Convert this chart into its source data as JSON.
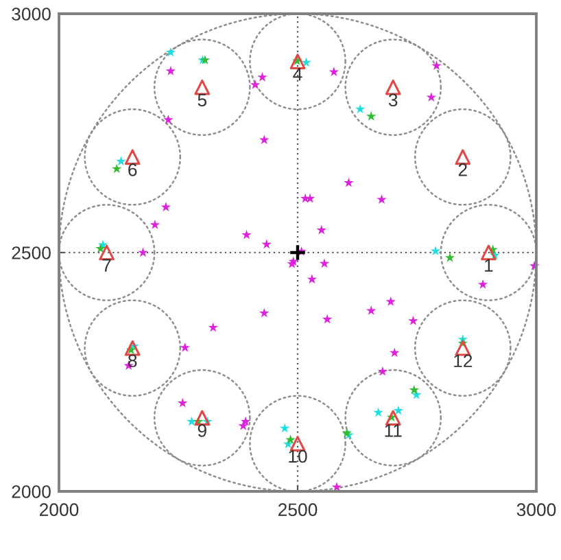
{
  "chart_data": {
    "type": "scatter",
    "xlim": [
      2000,
      3000
    ],
    "ylim": [
      2000,
      3000
    ],
    "xticks": [
      2000,
      2500,
      3000
    ],
    "yticks": [
      2000,
      2500,
      3000
    ],
    "grid": true,
    "series": [
      {
        "color": "#dd22dd",
        "marker": "star",
        "x": [
          2234,
          2229,
          2411,
          2426,
          2576,
          2791,
          2780,
          2430,
          2607,
          2516,
          2526,
          2676,
          2224,
          2201,
          2393,
          2435,
          2550,
          2176,
          2508,
          2491,
          2488,
          2556,
          2530,
          2996,
          2888,
          2430,
          2323,
          2562,
          2654,
          2695,
          2742,
          2264,
          2146,
          2703,
          2678,
          2259,
          2391,
          2386,
          2582
        ],
        "values": [
          2880,
          2778,
          2851,
          2867,
          2878,
          2891,
          2825,
          2736,
          2646,
          2613,
          2613,
          2611,
          2595,
          2558,
          2537,
          2517,
          2547,
          2500,
          2502,
          2481,
          2476,
          2477,
          2444,
          2472,
          2433,
          2373,
          2343,
          2360,
          2378,
          2397,
          2357,
          2301,
          2263,
          2290,
          2251,
          2185,
          2146,
          2137,
          2009
        ]
      },
      {
        "color": "#22dddd",
        "marker": "star",
        "x": [
          2789,
          2913,
          2631,
          2518,
          2234,
          2301,
          2130,
          2092,
          2157,
          2278,
          2311,
          2473,
          2480,
          2669,
          2711,
          2607,
          2749,
          2846
        ],
        "values": [
          2503,
          2494,
          2800,
          2898,
          2919,
          2903,
          2691,
          2516,
          2304,
          2146,
          2146,
          2132,
          2099,
          2165,
          2169,
          2118,
          2202,
          2318
        ]
      },
      {
        "color": "#33bb33",
        "marker": "star",
        "x": [
          2819,
          2909,
          2654,
          2499,
          2306,
          2121,
          2087,
          2151,
          2292,
          2485,
          2697,
          2603,
          2744,
          2846
        ],
        "values": [
          2489,
          2506,
          2785,
          2901,
          2903,
          2675,
          2508,
          2296,
          2146,
          2108,
          2155,
          2122,
          2212,
          2310
        ]
      },
      {
        "color": "#e04848",
        "marker": "triangle",
        "x": [
          2900,
          2846,
          2700,
          2500,
          2300,
          2154,
          2100,
          2154,
          2300,
          2500,
          2700,
          2846
        ],
        "values": [
          2500,
          2700,
          2846,
          2900,
          2846,
          2700,
          2500,
          2300,
          2154,
          2100,
          2154,
          2300
        ]
      },
      {
        "color": "#000000",
        "marker": "cross",
        "x": [
          2500
        ],
        "values": [
          2500
        ]
      }
    ],
    "annotations": [
      {
        "text": "1",
        "x": 2900,
        "y": 2500
      },
      {
        "text": "2",
        "x": 2846,
        "y": 2700
      },
      {
        "text": "3",
        "x": 2700,
        "y": 2846
      },
      {
        "text": "4",
        "x": 2500,
        "y": 2900
      },
      {
        "text": "5",
        "x": 2300,
        "y": 2846
      },
      {
        "text": "6",
        "x": 2154,
        "y": 2700
      },
      {
        "text": "7",
        "x": 2100,
        "y": 2500
      },
      {
        "text": "8",
        "x": 2154,
        "y": 2300
      },
      {
        "text": "9",
        "x": 2300,
        "y": 2154
      },
      {
        "text": "10",
        "x": 2500,
        "y": 2100
      },
      {
        "text": "11",
        "x": 2700,
        "y": 2154
      },
      {
        "text": "12",
        "x": 2846,
        "y": 2300
      }
    ]
  }
}
